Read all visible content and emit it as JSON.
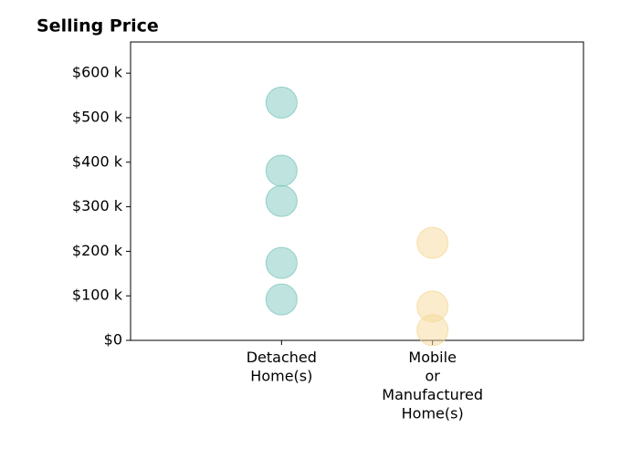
{
  "chart_data": {
    "type": "strip",
    "title": "Selling Price",
    "categories": [
      [
        "Detached",
        "Home(s)"
      ],
      [
        "Mobile",
        "or",
        "Manufactured",
        "Home(s)"
      ]
    ],
    "values": [
      [
        534000,
        381000,
        313000,
        174000,
        92000
      ],
      [
        219000,
        76000,
        23000
      ]
    ],
    "colors": [
      "#7fc7bf",
      "#f5d99a"
    ],
    "ylim": [
      0,
      670000
    ],
    "yticks": [
      {
        "value": 0,
        "label": "$0"
      },
      {
        "value": 100000,
        "label": "$100 k"
      },
      {
        "value": 200000,
        "label": "$200 k"
      },
      {
        "value": 300000,
        "label": "$300 k"
      },
      {
        "value": 400000,
        "label": "$400 k"
      },
      {
        "value": 500000,
        "label": "$500 k"
      },
      {
        "value": 600000,
        "label": "$600 k"
      }
    ]
  }
}
